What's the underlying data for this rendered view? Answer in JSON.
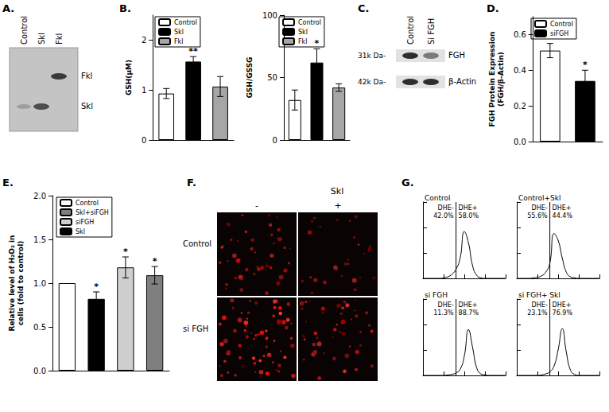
{
  "panels": {
    "A": {
      "letter": "A.",
      "lanes": [
        "Control",
        "Skl",
        "Fkl"
      ],
      "band_labels": [
        "Fkl",
        "Skl"
      ]
    },
    "C": {
      "letter": "C.",
      "lanes": [
        "Control",
        "Si FGH"
      ],
      "rows": [
        {
          "size": "31k Da-",
          "label": "FGH"
        },
        {
          "size": "42k Da-",
          "label": "β-Actin"
        }
      ]
    },
    "F": {
      "letter": "F.",
      "column_title": "Skl",
      "columns": [
        "-",
        "+"
      ],
      "rows": [
        "Control",
        "si FGH"
      ]
    }
  },
  "chart_data": [
    {
      "letter": "B.",
      "type": "bar",
      "ylabel": "GSH(μM)",
      "categories": [
        null,
        null,
        null
      ],
      "series": [
        {
          "name": "Control",
          "color": "#ffffff",
          "values": [
            0.93,
            null,
            null
          ],
          "errors": [
            0.1,
            null,
            null
          ]
        },
        {
          "name": "Skl",
          "color": "#000000",
          "values": [
            null,
            1.57,
            null
          ],
          "errors": [
            null,
            0.1,
            null
          ],
          "significance": [
            null,
            "**",
            null
          ]
        },
        {
          "name": "Fkl",
          "color": "#a6a6a6",
          "values": [
            null,
            null,
            1.07
          ],
          "errors": [
            null,
            null,
            0.2
          ]
        }
      ],
      "ylim": [
        0,
        2.5
      ],
      "yticks": [
        0,
        1,
        2
      ],
      "legend": "upper left",
      "tick_labels": "y",
      "grid": false
    },
    {
      "type": "bar",
      "ylabel": "GSH/GSSG",
      "categories": [
        null,
        null,
        null
      ],
      "series": [
        {
          "name": "Control",
          "color": "#ffffff",
          "values": [
            32,
            null,
            null
          ],
          "errors": [
            8,
            null,
            null
          ]
        },
        {
          "name": "Skl",
          "color": "#000000",
          "values": [
            null,
            62,
            null
          ],
          "errors": [
            null,
            11,
            null
          ],
          "significance": [
            null,
            "*",
            null
          ]
        },
        {
          "name": "Fkl",
          "color": "#a6a6a6",
          "values": [
            null,
            null,
            42
          ],
          "errors": [
            null,
            null,
            3
          ]
        }
      ],
      "ylim": [
        0,
        100
      ],
      "yticks": [
        0,
        50,
        100
      ],
      "legend": "upper left",
      "tick_labels": "y",
      "grid": false
    },
    {
      "letter": "D.",
      "type": "bar",
      "ylabel": "FGH Protein Expression\n(FGH/β-Actin)",
      "categories": [
        null,
        null
      ],
      "series": [
        {
          "name": "Control",
          "color": "#ffffff",
          "values": [
            0.51,
            null
          ],
          "errors": [
            0.04,
            null
          ]
        },
        {
          "name": "siFGH",
          "color": "#000000",
          "values": [
            null,
            0.34
          ],
          "errors": [
            null,
            0.06
          ],
          "significance": [
            null,
            "*"
          ]
        }
      ],
      "ylim": [
        0,
        0.7
      ],
      "yticks": [
        {
          "value": 0,
          "label": "0.0"
        },
        0.2,
        0.4,
        0.6
      ],
      "legend": "upper left",
      "tick_labels": "y",
      "grid": false
    },
    {
      "letter": "E.",
      "type": "bar",
      "ylabel": "Relative level of H₂O₂ in\ncells (fold to control)",
      "categories": [
        null,
        null,
        null,
        null
      ],
      "series": [
        {
          "name": "Control",
          "color": "#ffffff",
          "values": [
            1.0,
            null,
            null,
            null
          ]
        },
        {
          "name": "Skl+siFGH",
          "color": "#7f7f7f",
          "values": [
            null,
            null,
            null,
            1.09
          ],
          "errors": [
            null,
            null,
            null,
            0.1
          ],
          "significance": [
            null,
            null,
            null,
            "*"
          ]
        },
        {
          "name": "siFGH",
          "color": "#cfcfcf",
          "values": [
            null,
            null,
            1.18,
            null
          ],
          "errors": [
            null,
            null,
            0.12,
            null
          ],
          "significance": [
            null,
            null,
            "*",
            null
          ]
        },
        {
          "name": "Skl",
          "color": "#000000",
          "values": [
            null,
            0.82,
            null,
            null
          ],
          "errors": [
            null,
            0.08,
            null,
            null
          ],
          "significance": [
            null,
            "*",
            null,
            null
          ]
        }
      ],
      "ylim": [
        0,
        2.0
      ],
      "yticks": [
        {
          "value": 0,
          "label": "0.0"
        },
        0.5,
        {
          "value": 1,
          "label": "1.0"
        },
        1.5,
        {
          "value": 2,
          "label": "2.0"
        }
      ],
      "legend": "upper left",
      "tick_labels": "y",
      "grid": false
    },
    {
      "letter": "G.",
      "type": "line",
      "title": "Control",
      "x": [
        0,
        0.2,
        0.4,
        0.6,
        0.8,
        1,
        1.2,
        1.4,
        1.6,
        1.8,
        2,
        2.2,
        2.4,
        2.6,
        2.8,
        3,
        3.2,
        3.4,
        3.6,
        3.8,
        4
      ],
      "series": [
        {
          "color": "#000000",
          "values": [
            0,
            0,
            0,
            0,
            0,
            1,
            3,
            8,
            18,
            40,
            92,
            70,
            25,
            6,
            1,
            0,
            0,
            0,
            0,
            0,
            0
          ]
        }
      ],
      "gate": 1.6,
      "left_text": [
        "DHE-",
        "42.0%"
      ],
      "right_text": [
        "DHE+",
        "58.0%"
      ],
      "xlim": [
        0,
        4
      ],
      "xticks": [
        0,
        1,
        2,
        3,
        4
      ],
      "ylim": [
        0,
        150
      ],
      "yticks": [
        0,
        50,
        100,
        150
      ],
      "tick_labels": false,
      "grid": false
    },
    {
      "type": "line",
      "title": "Control+Skl",
      "x": [
        0,
        0.2,
        0.4,
        0.6,
        0.8,
        1,
        1.2,
        1.4,
        1.6,
        1.8,
        2,
        2.2,
        2.4,
        2.6,
        2.8,
        3,
        3.2,
        3.4,
        3.6,
        3.8,
        4
      ],
      "series": [
        {
          "color": "#000000",
          "values": [
            0,
            0,
            0,
            0,
            1,
            2,
            5,
            12,
            30,
            88,
            75,
            40,
            12,
            3,
            1,
            0,
            0,
            0,
            0,
            0,
            0
          ]
        }
      ],
      "gate": 1.6,
      "left_text": [
        "DHE-",
        "55.6%"
      ],
      "right_text": [
        "DHE+",
        "44.4%"
      ],
      "xlim": [
        0,
        4
      ],
      "xticks": [
        0,
        1,
        2,
        3,
        4
      ],
      "ylim": [
        0,
        150
      ],
      "yticks": [
        0,
        50,
        100,
        150
      ],
      "tick_labels": false,
      "grid": false
    },
    {
      "type": "line",
      "title": "si FGH",
      "x": [
        0,
        0.2,
        0.4,
        0.6,
        0.8,
        1,
        1.2,
        1.4,
        1.6,
        1.8,
        2,
        2.2,
        2.4,
        2.6,
        2.8,
        3,
        3.2,
        3.4,
        3.6,
        3.8,
        4
      ],
      "series": [
        {
          "color": "#000000",
          "values": [
            0,
            0,
            0,
            0,
            0,
            0,
            1,
            2,
            5,
            12,
            38,
            90,
            55,
            15,
            3,
            1,
            0,
            0,
            0,
            0,
            0
          ]
        }
      ],
      "gate": 1.6,
      "left_text": [
        "DHE-",
        "11.3%"
      ],
      "right_text": [
        "DHE+",
        "88.7%"
      ],
      "xlim": [
        0,
        4
      ],
      "xticks": [
        0,
        1,
        2,
        3,
        4
      ],
      "ylim": [
        0,
        150
      ],
      "yticks": [
        0,
        50,
        100,
        150
      ],
      "tick_labels": false,
      "grid": false
    },
    {
      "type": "line",
      "title": "si FGH+ Skl",
      "x": [
        0,
        0.2,
        0.4,
        0.6,
        0.8,
        1,
        1.2,
        1.4,
        1.6,
        1.8,
        2,
        2.2,
        2.4,
        2.6,
        2.8,
        3,
        3.2,
        3.4,
        3.6,
        3.8,
        4
      ],
      "series": [
        {
          "color": "#000000",
          "values": [
            0,
            0,
            0,
            0,
            0,
            0,
            1,
            3,
            7,
            18,
            50,
            92,
            45,
            10,
            2,
            0,
            0,
            0,
            0,
            0,
            0
          ]
        }
      ],
      "gate": 1.6,
      "left_text": [
        "DHE-",
        "23.1%"
      ],
      "right_text": [
        "DHE+",
        "76.9%"
      ],
      "xlim": [
        0,
        4
      ],
      "xticks": [
        0,
        1,
        2,
        3,
        4
      ],
      "ylim": [
        0,
        150
      ],
      "yticks": [
        0,
        50,
        100,
        150
      ],
      "tick_labels": false,
      "grid": false
    }
  ]
}
